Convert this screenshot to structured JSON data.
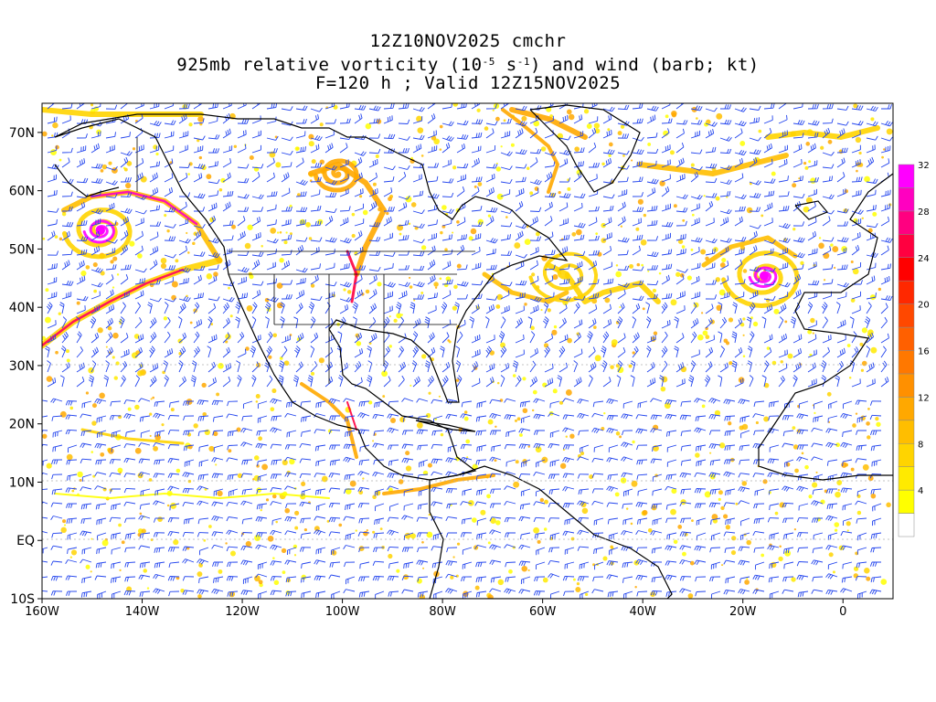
{
  "title": {
    "line1": "12Z10NOV2025 cmchr",
    "line2_a": "925mb relative vorticity (10",
    "line2_exp1": "-5",
    "line2_b": " s",
    "line2_exp2": "-1",
    "line2_c": ") and wind (barb; kt)",
    "line3": "F=120 h ; Valid 12Z15NOV2025"
  },
  "map": {
    "lon_labels": [
      "160W",
      "140W",
      "120W",
      "100W",
      "80W",
      "60W",
      "40W",
      "20W",
      "0"
    ],
    "lat_labels": [
      "70N",
      "60N",
      "50N",
      "40N",
      "30N",
      "20N",
      "10N",
      "EQ",
      "10S"
    ],
    "lon_range": [
      -160,
      10
    ],
    "lat_range": [
      -10,
      75
    ]
  },
  "colorbar": {
    "labels": [
      "4",
      "8",
      "12",
      "16",
      "20",
      "24",
      "28",
      "32"
    ],
    "colors": [
      "#ffffff",
      "#ffff00",
      "#ffea00",
      "#ffd400",
      "#ffbe00",
      "#ffa800",
      "#ff9000",
      "#ff7800",
      "#ff6000",
      "#ff4800",
      "#ff2800",
      "#ff0000",
      "#ff0040",
      "#ff0080",
      "#ff00c0",
      "#ff00ff"
    ]
  },
  "colors": {
    "barb": "#2244ee",
    "coast": "#000000",
    "vorticity_low": "#ffff00",
    "vorticity_mid": "#ffa800",
    "vorticity_high": "#ff00ff"
  }
}
